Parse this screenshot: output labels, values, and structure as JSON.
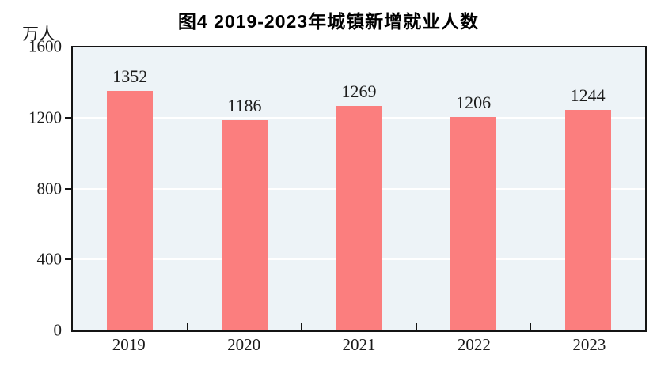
{
  "header": {
    "title": "图4  2019-2023年城镇新增就业人数"
  },
  "y_axis": {
    "unit": "万人"
  },
  "chart_data": {
    "type": "bar",
    "title": "图4  2019-2023年城镇新增就业人数",
    "categories": [
      "2019",
      "2020",
      "2021",
      "2022",
      "2023"
    ],
    "values": [
      1352,
      1186,
      1269,
      1206,
      1244
    ],
    "xlabel": "",
    "ylabel": "万人",
    "ylim": [
      0,
      1600
    ],
    "yticks": [
      0,
      400,
      800,
      1200,
      1600
    ],
    "gridline_levels": [
      400,
      800,
      1200
    ],
    "legend": "none",
    "grid": "horizontal-white",
    "bar_color": "#FB7E7E",
    "plot_background": "#EDF3F7",
    "axis_color": "#141414",
    "gridline_color": "#FFFFFF",
    "label_color": "#1A1A1A"
  }
}
